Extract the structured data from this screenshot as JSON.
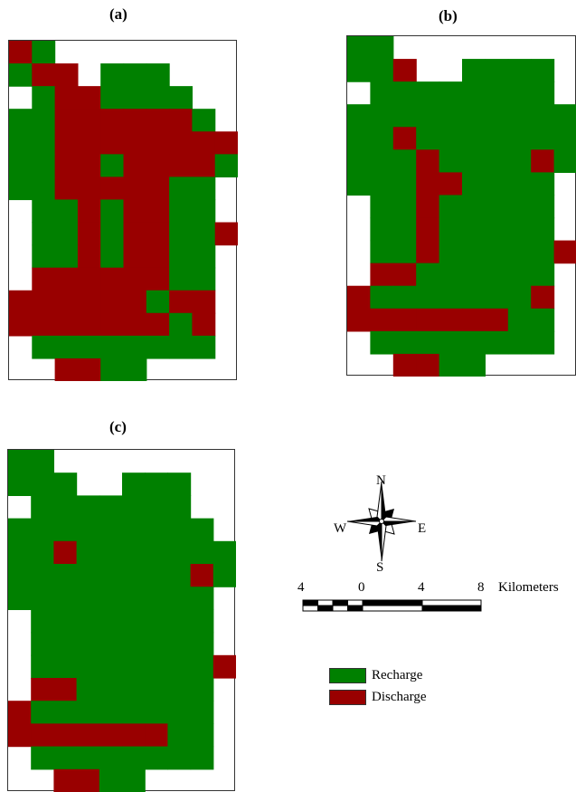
{
  "colors": {
    "recharge": "#008000",
    "discharge": "#990000",
    "background": "#ffffff"
  },
  "panels": [
    {
      "id": "a",
      "label": "(a)",
      "grid": [
        "DGWWWWWWWW",
        "GDDWGGGWWW",
        "WGDDGGGGWW",
        "GGDDDDDDGW",
        "GGDDDDDDDD",
        "GGDDGDDDDG",
        "GGDDDDDGGW",
        "WGGDGDDGGW",
        "WGGDGDDGGD",
        "WGGDGDDGGW",
        "WDDDDDDGGW",
        "DDDDDDGDDW",
        "DDDDDDDGDW",
        "WGGGGGGGGW",
        "WWDDGGWWWW"
      ]
    },
    {
      "id": "b",
      "label": "(b)",
      "grid": [
        "GGWWWWWWWW",
        "GGDWWGGGGW",
        "WGGGGGGGGW",
        "GGGGGGGGGG",
        "GGDGGGGGGG",
        "GGGDGGGGDG",
        "GGGDDGGGGW",
        "WGGDGGGGGW",
        "WGGDGGGGGW",
        "WGGDGGGGGD",
        "WDDGGGGGGW",
        "DGGGGGGGDW",
        "DDDDDDDGGW",
        "WGGGGGGGGW",
        "WWDDGGWWWW"
      ]
    },
    {
      "id": "c",
      "label": "(c)",
      "grid": [
        "GGWWWWWWWW",
        "GGGWWGGGWW",
        "WGGGGGGGWW",
        "GGGGGGGGGW",
        "GGDGGGGGGG",
        "GGGGGGGGDG",
        "GGGGGGGGGW",
        "WGGGGGGGGW",
        "WGGGGGGGGW",
        "WGGGGGGGGD",
        "WDDGGGGGGW",
        "DGGGGGGGGW",
        "DDDDDDDGGW",
        "WGGGGGGGGW",
        "WWDDGGWWWW"
      ]
    }
  ],
  "compass": {
    "north": "N",
    "south": "S",
    "east": "E",
    "west": "W"
  },
  "scale": {
    "ticks": [
      "4",
      "0",
      "4",
      "8"
    ],
    "unit": "Kilometers"
  },
  "legend": [
    {
      "label": "Recharge",
      "color_key": "recharge"
    },
    {
      "label": "Discharge",
      "color_key": "discharge"
    }
  ]
}
